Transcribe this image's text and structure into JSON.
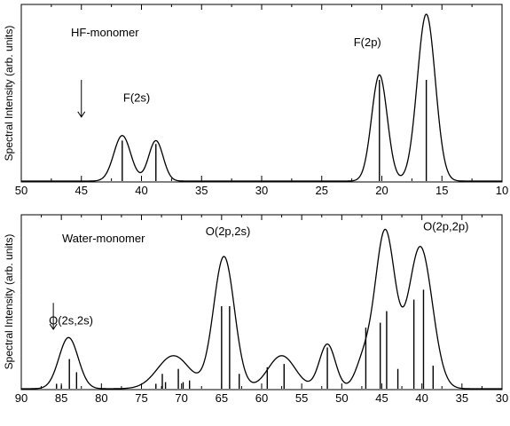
{
  "chart_data": [
    {
      "type": "line",
      "panel_label": "HF-monomer",
      "ylabel": "Spectral Intensity (arb. units)",
      "xlabel": "",
      "xlim": [
        50,
        10
      ],
      "x_reversed": true,
      "xticks": [
        50,
        45,
        40,
        35,
        30,
        25,
        20,
        15,
        10
      ],
      "xtick_labels": [
        "50",
        "45",
        "40",
        "35",
        "30",
        "25",
        "20",
        "15",
        "10"
      ],
      "ylim": [
        0,
        1.0
      ],
      "arrow": {
        "x": 45,
        "y_top": 0.6,
        "y_bottom": 0.38
      },
      "peaks": [
        {
          "x": 41.6,
          "height": 0.27,
          "width": 0.7
        },
        {
          "x": 38.8,
          "height": 0.24,
          "width": 0.6
        },
        {
          "x": 20.2,
          "height": 0.63,
          "width": 0.65
        },
        {
          "x": 16.3,
          "height": 0.99,
          "width": 0.75
        }
      ],
      "sticks": [
        {
          "x": 41.6,
          "height": 0.24
        },
        {
          "x": 38.8,
          "height": 0.22
        },
        {
          "x": 20.2,
          "height": 0.6
        },
        {
          "x": 16.3,
          "height": 0.6
        }
      ],
      "annotations": [
        {
          "text": "F(2s)",
          "x": 40.4,
          "y": 0.47
        },
        {
          "text": "F(2p)",
          "x": 21.2,
          "y": 0.8
        }
      ]
    },
    {
      "type": "line",
      "panel_label": "Water-monomer",
      "ylabel": "Spectral Intensity (arb. units)",
      "xlabel": "",
      "xlim": [
        90,
        30
      ],
      "x_reversed": true,
      "xticks": [
        90,
        85,
        80,
        75,
        70,
        65,
        60,
        55,
        50,
        45,
        40,
        35,
        30
      ],
      "xtick_labels": [
        "90",
        "85",
        "80",
        "75",
        "70",
        "65",
        "60",
        "55",
        "50",
        "45",
        "40",
        "35",
        "30"
      ],
      "ylim": [
        0,
        1.0
      ],
      "arrow": {
        "x": 86,
        "y_top": 0.52,
        "y_bottom": 0.36
      },
      "peaks": [
        {
          "x": 84.1,
          "height": 0.31,
          "width": 1.2
        },
        {
          "x": 71.0,
          "height": 0.2,
          "width": 2.0
        },
        {
          "x": 64.7,
          "height": 0.8,
          "width": 1.3
        },
        {
          "x": 57.5,
          "height": 0.2,
          "width": 1.7
        },
        {
          "x": 51.8,
          "height": 0.27,
          "width": 1.0
        },
        {
          "x": 47.3,
          "height": 0.16,
          "width": 1.0
        },
        {
          "x": 44.6,
          "height": 0.95,
          "width": 1.25
        },
        {
          "x": 40.2,
          "height": 0.86,
          "width": 1.5
        }
      ],
      "sticks": [
        {
          "x": 85.6,
          "height": 0.03
        },
        {
          "x": 85.0,
          "height": 0.02
        },
        {
          "x": 84.0,
          "height": 0.18
        },
        {
          "x": 83.1,
          "height": 0.1
        },
        {
          "x": 73.2,
          "height": 0.03
        },
        {
          "x": 72.4,
          "height": 0.09
        },
        {
          "x": 72.0,
          "height": 0.04
        },
        {
          "x": 70.4,
          "height": 0.12
        },
        {
          "x": 69.8,
          "height": 0.04
        },
        {
          "x": 69.0,
          "height": 0.05
        },
        {
          "x": 65.0,
          "height": 0.5
        },
        {
          "x": 64.0,
          "height": 0.5
        },
        {
          "x": 62.8,
          "height": 0.09
        },
        {
          "x": 59.3,
          "height": 0.13
        },
        {
          "x": 57.2,
          "height": 0.15
        },
        {
          "x": 51.8,
          "height": 0.25
        },
        {
          "x": 47.0,
          "height": 0.37
        },
        {
          "x": 45.2,
          "height": 0.4
        },
        {
          "x": 44.4,
          "height": 0.47
        },
        {
          "x": 43.0,
          "height": 0.12
        },
        {
          "x": 41.0,
          "height": 0.54
        },
        {
          "x": 39.8,
          "height": 0.6
        },
        {
          "x": 38.6,
          "height": 0.14
        }
      ],
      "annotations": [
        {
          "text": "O(2s,2s)",
          "x": 83.8,
          "y": 0.39
        },
        {
          "text": "O(2p,2s)",
          "x": 64.2,
          "y": 0.93
        },
        {
          "text": "O(2p,2p)",
          "x": 37.0,
          "y": 0.96
        }
      ]
    }
  ]
}
